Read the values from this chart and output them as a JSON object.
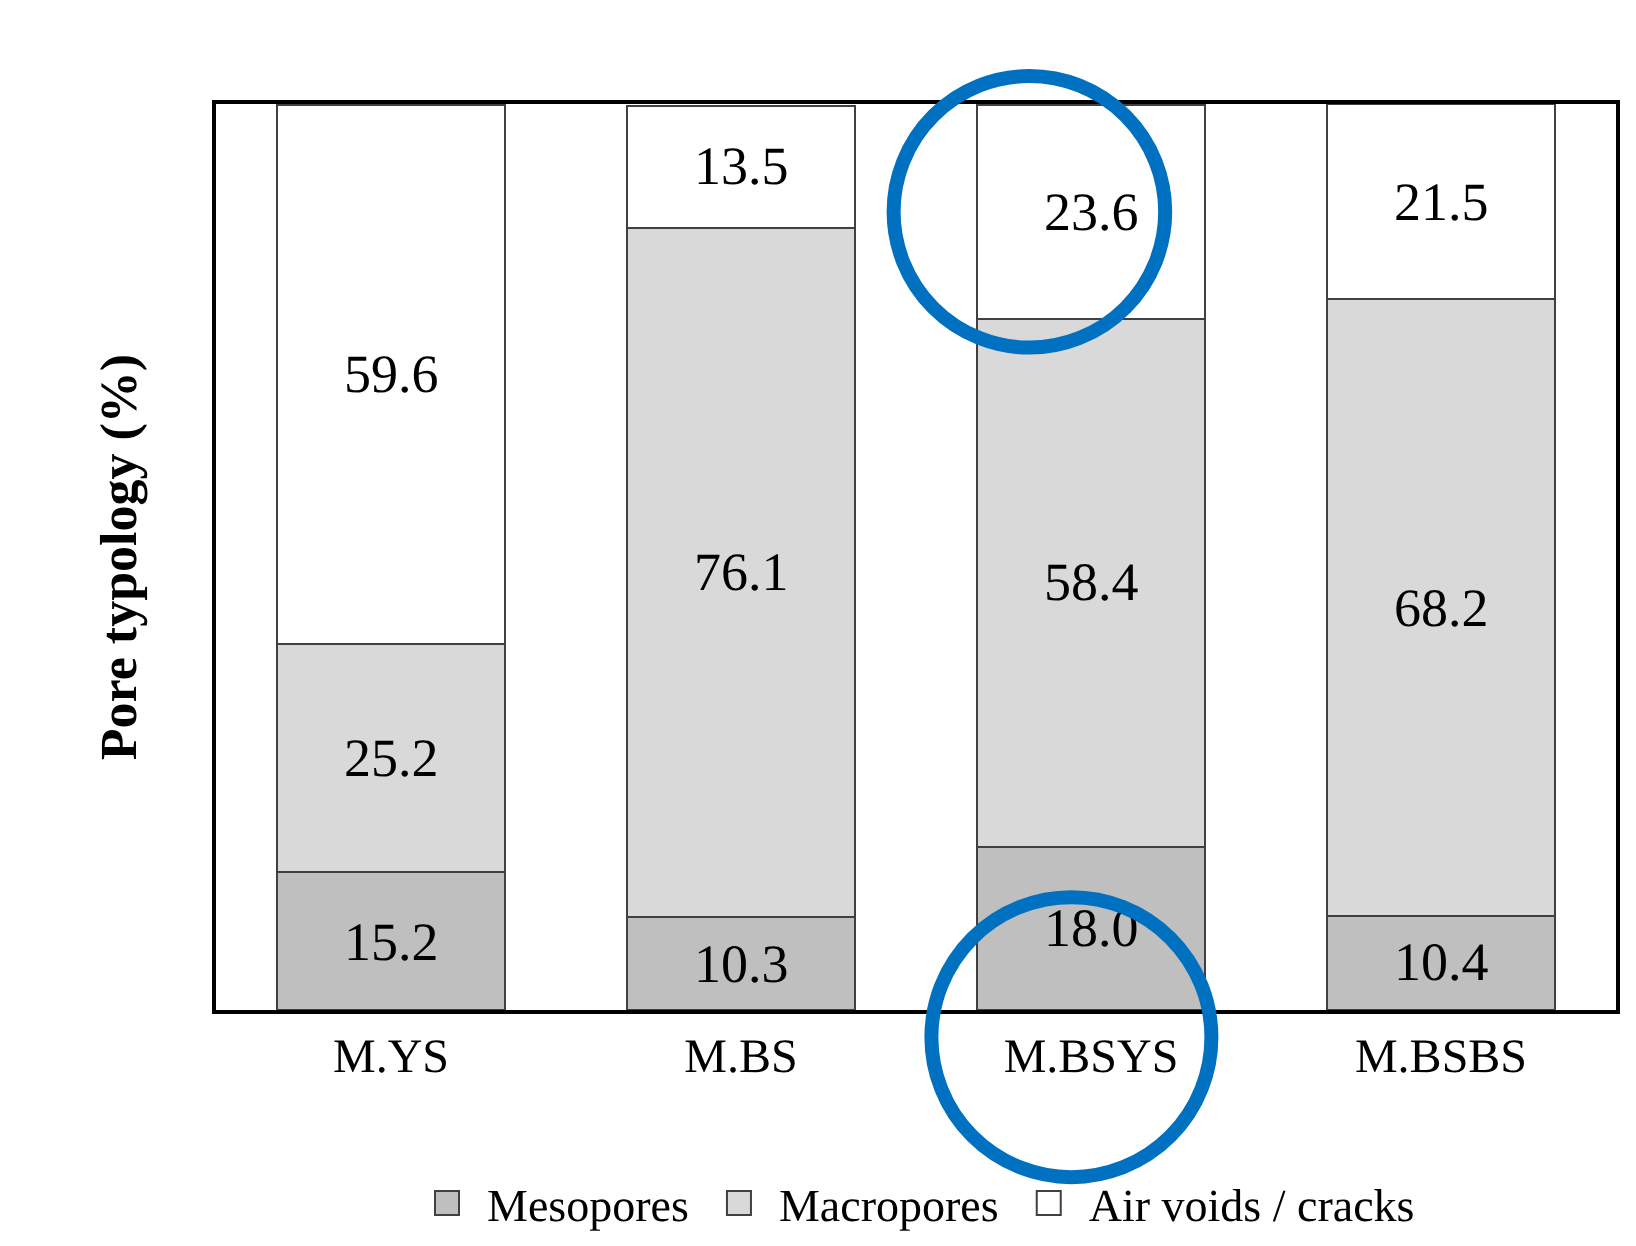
{
  "chart_data": {
    "type": "bar",
    "stacked": true,
    "ylabel": "Pore typology (%)",
    "categories": [
      "M.YS",
      "M.BS",
      "M.BSYS",
      "M.BSBS"
    ],
    "series": [
      {
        "name": "Mesopores",
        "color": "#bfbfbf",
        "values": [
          15.2,
          10.3,
          18.0,
          10.4
        ],
        "value_labels": [
          "15.2",
          "10.3",
          "18.0",
          "10.4"
        ]
      },
      {
        "name": "Macropores",
        "color": "#d9d9d9",
        "values": [
          25.2,
          76.1,
          58.4,
          68.2
        ],
        "value_labels": [
          "25.2",
          "76.1",
          "58.4",
          "68.2"
        ]
      },
      {
        "name": "Air voids / cracks",
        "color": "#ffffff",
        "values": [
          59.6,
          13.5,
          23.6,
          21.5
        ],
        "value_labels": [
          "59.6",
          "13.5",
          "23.6",
          "21.5"
        ]
      }
    ],
    "ylim": [
      0,
      100.1
    ],
    "tick_labels": "x",
    "legend": "bottom"
  }
}
